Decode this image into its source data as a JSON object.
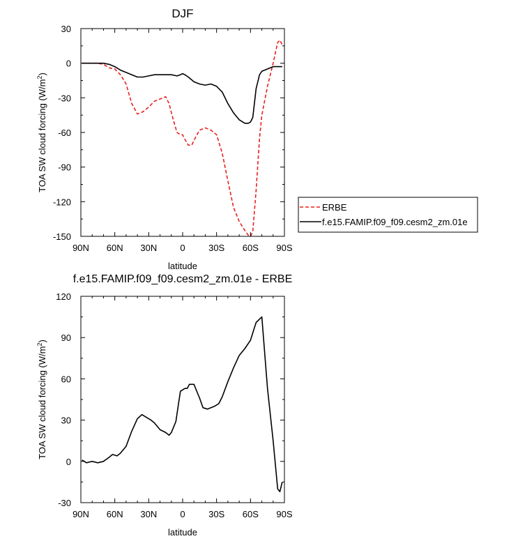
{
  "chart_data": [
    {
      "type": "line",
      "title": "DJF",
      "xlabel": "latitude",
      "ylabel_main": "TOA SW cloud forcing (W/m",
      "ylabel_sup": "2",
      "ylabel_close": ")",
      "xlim": [
        90,
        -90
      ],
      "ylim": [
        -150,
        30
      ],
      "x_ticks": [
        90,
        60,
        30,
        0,
        -30,
        -60,
        -90
      ],
      "x_tick_labels": [
        "90N",
        "60N",
        "30N",
        "0",
        "30S",
        "60S",
        "90S"
      ],
      "y_ticks": [
        -150,
        -120,
        -90,
        -60,
        -30,
        0,
        30
      ],
      "y_tick_labels": [
        "-150",
        "-120",
        "-90",
        "-60",
        "-30",
        "0",
        "30"
      ],
      "legend_position": "right",
      "series": [
        {
          "name": "ERBE",
          "color": "#e8201c",
          "dash": "dashed",
          "x": [
            89,
            85,
            80,
            75,
            70,
            65,
            60,
            55,
            50,
            45,
            40,
            35,
            30,
            25,
            20,
            15,
            12,
            8,
            5,
            2,
            0,
            -2,
            -5,
            -8,
            -12,
            -15,
            -20,
            -25,
            -30,
            -35,
            -40,
            -45,
            -50,
            -55,
            -58,
            -60,
            -62,
            -65,
            -68,
            -70,
            -75,
            -80,
            -84,
            -86,
            -88
          ],
          "y": [
            0,
            0,
            0,
            0,
            -1,
            -4,
            -5,
            -10,
            -18,
            -35,
            -44,
            -42,
            -38,
            -33,
            -31,
            -29,
            -35,
            -50,
            -60,
            -62,
            -62,
            -66,
            -71,
            -71,
            -63,
            -58,
            -56,
            -58,
            -62,
            -78,
            -102,
            -125,
            -137,
            -145,
            -149,
            -150,
            -146,
            -110,
            -65,
            -45,
            -20,
            0,
            18,
            20,
            16
          ]
        },
        {
          "name": "f.e15.FAMIP.f09_f09.cesm2_zm.01e",
          "color": "#000000",
          "dash": "solid",
          "x": [
            89,
            85,
            80,
            75,
            70,
            65,
            60,
            55,
            50,
            45,
            40,
            35,
            30,
            25,
            20,
            15,
            10,
            5,
            2,
            0,
            -2,
            -5,
            -10,
            -15,
            -20,
            -25,
            -30,
            -35,
            -40,
            -45,
            -50,
            -55,
            -58,
            -60,
            -62,
            -65,
            -68,
            -70,
            -75,
            -80,
            -85,
            -88
          ],
          "y": [
            0,
            0,
            0,
            0,
            0,
            -1,
            -3,
            -6,
            -8,
            -10,
            -12,
            -12,
            -11,
            -10,
            -10,
            -10,
            -10,
            -11,
            -10,
            -9,
            -10,
            -12,
            -16,
            -18,
            -19,
            -18,
            -20,
            -25,
            -35,
            -43,
            -49,
            -52,
            -52,
            -51,
            -47,
            -22,
            -10,
            -7,
            -5,
            -3,
            -3,
            -3
          ]
        }
      ]
    },
    {
      "type": "line",
      "title": "f.e15.FAMIP.f09_f09.cesm2_zm.01e - ERBE",
      "xlabel": "latitude",
      "ylabel_main": "TOA SW cloud forcing (W/m",
      "ylabel_sup": "2",
      "ylabel_close": ")",
      "xlim": [
        90,
        -90
      ],
      "ylim": [
        -30,
        120
      ],
      "x_ticks": [
        90,
        60,
        30,
        0,
        -30,
        -60,
        -90
      ],
      "x_tick_labels": [
        "90N",
        "60N",
        "30N",
        "0",
        "30S",
        "60S",
        "90S"
      ],
      "y_ticks": [
        -30,
        0,
        30,
        60,
        90,
        120
      ],
      "y_tick_labels": [
        "-30",
        "0",
        "30",
        "60",
        "90",
        "120"
      ],
      "series": [
        {
          "color": "#000000",
          "dash": "solid",
          "x": [
            89,
            85,
            80,
            75,
            70,
            65,
            62,
            58,
            55,
            50,
            45,
            40,
            36,
            32,
            28,
            25,
            20,
            15,
            12,
            10,
            6,
            4,
            2,
            -2,
            -4,
            -6,
            -10,
            -15,
            -18,
            -22,
            -25,
            -28,
            -32,
            -35,
            -40,
            -45,
            -50,
            -55,
            -60,
            -63,
            -65,
            -70,
            -75,
            -80,
            -84,
            -86,
            -88
          ],
          "y": [
            1,
            -1,
            0,
            -1,
            0,
            3,
            5,
            4,
            6,
            11,
            22,
            31,
            34,
            32,
            30,
            28,
            23,
            21,
            19,
            21,
            29,
            40,
            51,
            53,
            53,
            56,
            56,
            46,
            39,
            38,
            39,
            40,
            42,
            47,
            58,
            68,
            77,
            82,
            88,
            96,
            101,
            105,
            53,
            15,
            -20,
            -22,
            -15
          ]
        }
      ]
    }
  ]
}
